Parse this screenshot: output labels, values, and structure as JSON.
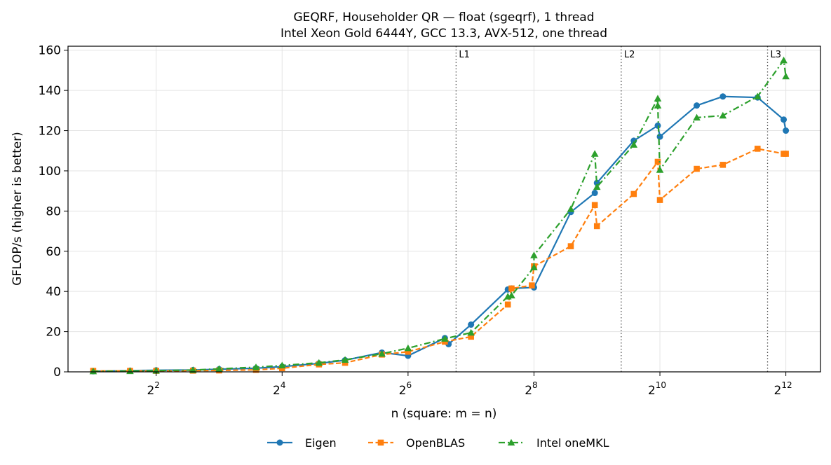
{
  "chart_data": {
    "type": "line",
    "title": "GEQRF, Householder QR — float (sgeqrf), 1 thread",
    "subtitle": "Intel Xeon Gold 6444Y, GCC 13.3, AVX-512, one thread",
    "xlabel": "n (square: m = n)",
    "ylabel": "GFLOP/s (higher is better)",
    "xscale": "log2",
    "xlim_log2": [
      0.6,
      12.55
    ],
    "ylim": [
      0,
      162
    ],
    "yticks": [
      0,
      20,
      40,
      60,
      80,
      100,
      120,
      140,
      160
    ],
    "xticks": [
      {
        "value": 4,
        "base": "2",
        "exp": "2"
      },
      {
        "value": 16,
        "base": "2",
        "exp": "4"
      },
      {
        "value": 64,
        "base": "2",
        "exp": "6"
      },
      {
        "value": 256,
        "base": "2",
        "exp": "8"
      },
      {
        "value": 1024,
        "base": "2",
        "exp": "10"
      },
      {
        "value": 4096,
        "base": "2",
        "exp": "12"
      }
    ],
    "grid": true,
    "legend_position": "bottom-center",
    "cache_lines": [
      {
        "label": "L1",
        "x": 108.6
      },
      {
        "label": "L2",
        "x": 668.8
      },
      {
        "label": "L3",
        "x": 3348.7
      }
    ],
    "series": [
      {
        "name": "Eigen",
        "color": "#1f77b4",
        "marker": "circle",
        "dash": "solid",
        "x": [
          2,
          3,
          4,
          6,
          8,
          12,
          16,
          24,
          32,
          48,
          64,
          96,
          100,
          128,
          192,
          200,
          256,
          384,
          500,
          512,
          768,
          1000,
          1024,
          1536,
          2048,
          3000,
          4000,
          4096
        ],
        "y": [
          0.3,
          0.6,
          0.8,
          0.9,
          1.3,
          1.8,
          2.6,
          4.2,
          5.8,
          9.6,
          8.0,
          16.8,
          13.8,
          23.5,
          41.0,
          41.5,
          42.0,
          79.5,
          89.0,
          94.0,
          115.0,
          122.5,
          117.0,
          132.5,
          137.0,
          136.5,
          125.5,
          120.0
        ]
      },
      {
        "name": "OpenBLAS",
        "color": "#ff7f0e",
        "marker": "square",
        "dash": "dashed",
        "x": [
          2,
          3,
          4,
          6,
          8,
          12,
          16,
          24,
          32,
          48,
          64,
          96,
          128,
          192,
          200,
          250,
          256,
          384,
          500,
          512,
          768,
          1000,
          1024,
          1536,
          2048,
          3000,
          4000,
          4096
        ],
        "y": [
          0.5,
          0.5,
          0.5,
          0.6,
          0.7,
          1.0,
          1.8,
          3.7,
          4.5,
          8.6,
          10.0,
          15.0,
          17.5,
          33.5,
          41.5,
          43.0,
          52.5,
          62.5,
          83.0,
          72.5,
          88.5,
          104.5,
          85.5,
          101.0,
          103.0,
          111.0,
          108.5,
          108.5
        ]
      },
      {
        "name": "Intel oneMKL",
        "color": "#2ca02c",
        "marker": "triangle",
        "dash": "dashdot",
        "x": [
          2,
          3,
          4,
          6,
          8,
          12,
          16,
          24,
          32,
          48,
          64,
          96,
          128,
          192,
          200,
          256,
          256,
          384,
          500,
          512,
          768,
          1000,
          1000,
          1024,
          1536,
          2048,
          3000,
          4000,
          4096
        ],
        "y": [
          0.3,
          0.4,
          0.6,
          0.9,
          1.5,
          2.3,
          3.2,
          4.5,
          6.0,
          9.0,
          11.8,
          16.5,
          19.5,
          37.5,
          38.0,
          52.0,
          58.0,
          81.0,
          108.5,
          92.0,
          113.0,
          136.0,
          132.5,
          100.5,
          126.5,
          127.5,
          137.0,
          155.0,
          147.0
        ]
      }
    ]
  }
}
